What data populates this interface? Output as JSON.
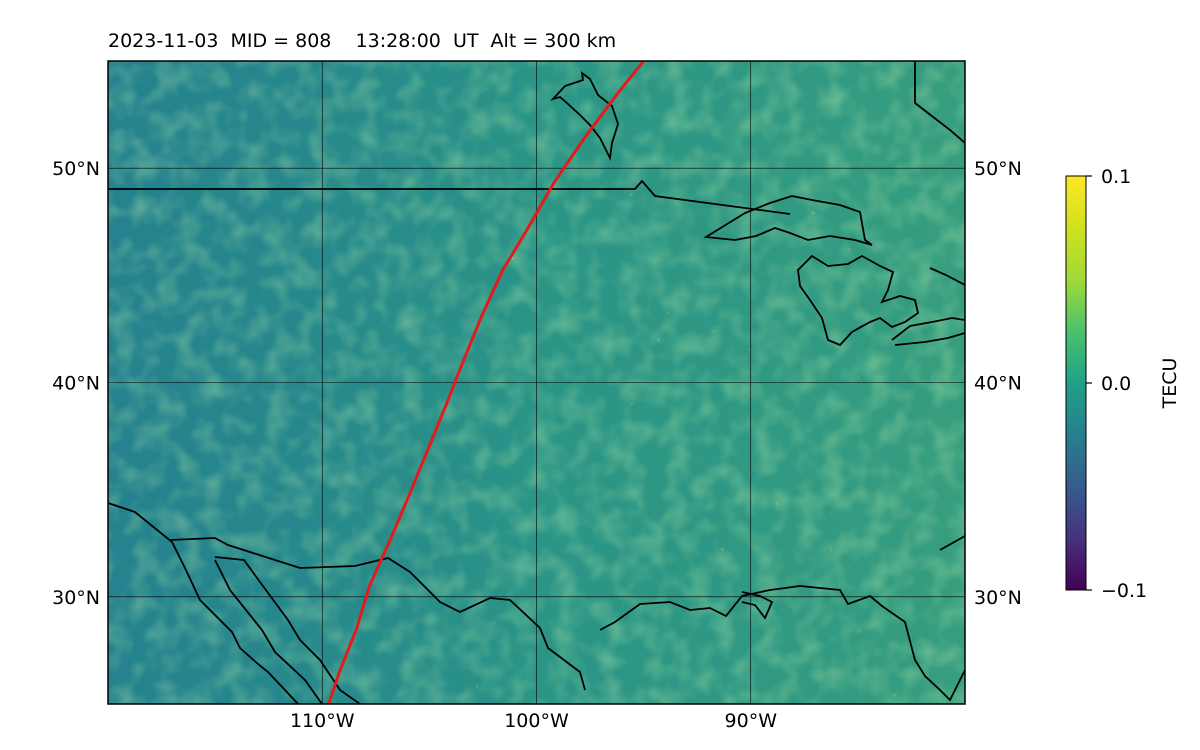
{
  "title": "2023-11-03  MID = 808    13:28:00  UT  Alt = 300 km",
  "map": {
    "lon_range": [
      -120,
      -80
    ],
    "lat_range": [
      25,
      55
    ],
    "lon_ticks": [
      {
        "value": -110,
        "label": "110°W"
      },
      {
        "value": -100,
        "label": "100°W"
      },
      {
        "value": -90,
        "label": "90°W"
      }
    ],
    "lat_ticks": [
      {
        "value": 50,
        "label": "50°N"
      },
      {
        "value": 40,
        "label": "40°N"
      },
      {
        "value": 30,
        "label": "30°N"
      }
    ],
    "grid": true,
    "track_color": "#e41a1c",
    "track": [
      [
        -109.7,
        25
      ],
      [
        -109.2,
        26.5
      ],
      [
        -108.4,
        28.5
      ],
      [
        -107.8,
        30.5
      ],
      [
        -106.9,
        32.5
      ],
      [
        -106.0,
        34.6
      ],
      [
        -105.1,
        36.8
      ],
      [
        -104.2,
        39.0
      ],
      [
        -103.5,
        40.8
      ],
      [
        -102.6,
        43.0
      ],
      [
        -101.6,
        45.2
      ],
      [
        -100.4,
        47.2
      ],
      [
        -99.2,
        49.3
      ],
      [
        -97.7,
        51.5
      ],
      [
        -96.2,
        53.5
      ],
      [
        -95.0,
        55.0
      ]
    ]
  },
  "colorbar": {
    "label": "TECU",
    "colormap": "viridis",
    "min": -0.1,
    "max": 0.1,
    "ticks": [
      {
        "value": 0.1,
        "label": "0.1"
      },
      {
        "value": 0.0,
        "label": "0.0"
      },
      {
        "value": -0.1,
        "label": "−0.1"
      }
    ]
  }
}
